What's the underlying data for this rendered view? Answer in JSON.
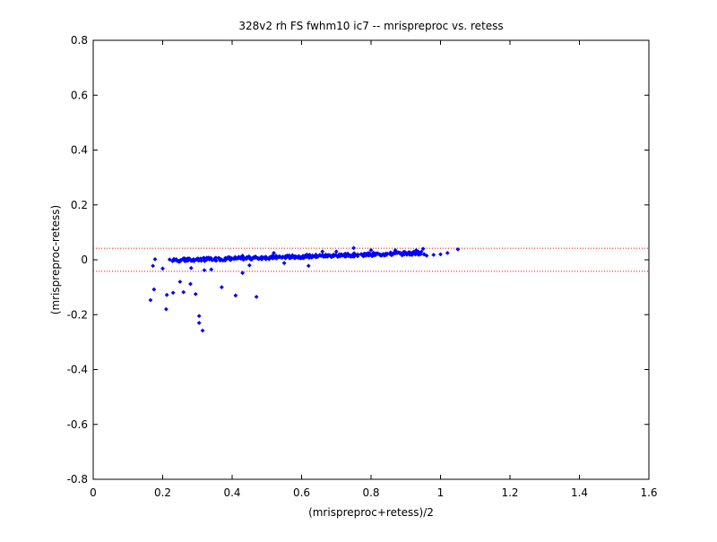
{
  "chart_data": {
    "type": "scatter",
    "title": "328v2 rh FS fwhm10 ic7 -- mrispreproc vs. retess",
    "xlabel": "(mrispreproc+retess)/2",
    "ylabel": "(mrispreproc-retess)",
    "xlim": [
      0,
      1.6
    ],
    "ylim": [
      -0.8,
      0.8
    ],
    "xticks": [
      0,
      0.2,
      0.4,
      0.6,
      0.8,
      1,
      1.2,
      1.4,
      1.6
    ],
    "yticks": [
      -0.8,
      -0.6,
      -0.4,
      -0.2,
      0,
      0.2,
      0.4,
      0.6,
      0.8
    ],
    "xtick_labels": [
      "0",
      "0.2",
      "0.4",
      "0.6",
      "0.8",
      "1",
      "1.2",
      "1.4",
      "1.6"
    ],
    "ytick_labels": [
      "-0.8",
      "-0.6",
      "-0.4",
      "-0.2",
      "0",
      "0.2",
      "0.4",
      "0.6",
      "0.8"
    ],
    "grid": false,
    "reference_lines": [
      {
        "axis": "y",
        "value": 0.042,
        "style": "dotted",
        "color": "#ff0000"
      },
      {
        "axis": "y",
        "value": -0.042,
        "style": "dotted",
        "color": "#ff0000"
      }
    ],
    "series": [
      {
        "color": "#0000ff",
        "marker": "diamond",
        "points": [
          [
            0.165,
            -0.147
          ],
          [
            0.172,
            -0.022
          ],
          [
            0.178,
            0.002
          ],
          [
            0.175,
            -0.108
          ],
          [
            0.2,
            -0.032
          ],
          [
            0.21,
            -0.18
          ],
          [
            0.212,
            -0.128
          ],
          [
            0.22,
            0.001
          ],
          [
            0.23,
            -0.12
          ],
          [
            0.25,
            -0.08
          ],
          [
            0.26,
            -0.118
          ],
          [
            0.28,
            -0.088
          ],
          [
            0.282,
            -0.03
          ],
          [
            0.295,
            -0.125
          ],
          [
            0.305,
            -0.205
          ],
          [
            0.305,
            -0.23
          ],
          [
            0.315,
            -0.258
          ],
          [
            0.32,
            -0.038
          ],
          [
            0.34,
            -0.035
          ],
          [
            0.37,
            -0.1
          ],
          [
            0.41,
            -0.13
          ],
          [
            0.43,
            -0.048
          ],
          [
            0.47,
            -0.135
          ],
          [
            0.45,
            -0.02
          ],
          [
            0.43,
            0.015
          ],
          [
            0.55,
            -0.012
          ],
          [
            0.62,
            -0.022
          ],
          [
            0.52,
            0.025
          ],
          [
            0.75,
            0.043
          ],
          [
            0.66,
            0.03
          ],
          [
            0.7,
            0.03
          ],
          [
            0.8,
            0.035
          ],
          [
            0.87,
            0.035
          ],
          [
            0.93,
            0.035
          ],
          [
            0.95,
            0.04
          ],
          [
            0.92,
            0.02
          ],
          [
            0.96,
            0.015
          ],
          [
            0.98,
            0.018
          ],
          [
            1.0,
            0.02
          ],
          [
            1.02,
            0.025
          ],
          [
            1.05,
            0.038
          ]
        ],
        "trend": {
          "x_start": 0.23,
          "x_end": 0.95,
          "y_start": -0.002,
          "y_end": 0.025,
          "spread": 0.006,
          "count": 320
        }
      }
    ]
  }
}
